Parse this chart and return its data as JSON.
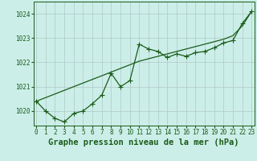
{
  "title": "Graphe pression niveau de la mer (hPa)",
  "background_color": "#cceee8",
  "grid_color": "#b0c8c8",
  "line_color": "#1a5c1a",
  "x_ticks": [
    0,
    1,
    2,
    3,
    4,
    5,
    6,
    7,
    8,
    9,
    10,
    11,
    12,
    13,
    14,
    15,
    16,
    17,
    18,
    19,
    20,
    21,
    22,
    23
  ],
  "ylim": [
    1019.4,
    1024.5
  ],
  "xlim": [
    -0.3,
    23.3
  ],
  "trend_x": [
    0,
    1,
    2,
    3,
    4,
    5,
    6,
    7,
    8,
    9,
    10,
    11,
    12,
    13,
    14,
    15,
    16,
    17,
    18,
    19,
    20,
    21,
    22,
    23
  ],
  "trend_y": [
    1020.4,
    1020.55,
    1020.7,
    1020.85,
    1021.0,
    1021.15,
    1021.3,
    1021.45,
    1021.6,
    1021.75,
    1021.9,
    1022.05,
    1022.15,
    1022.25,
    1022.35,
    1022.45,
    1022.55,
    1022.65,
    1022.75,
    1022.85,
    1022.95,
    1023.1,
    1023.5,
    1024.1
  ],
  "meas_x": [
    0,
    1,
    2,
    3,
    4,
    5,
    6,
    7,
    8,
    9,
    10,
    11,
    12,
    13,
    14,
    15,
    16,
    17,
    18,
    19,
    20,
    21,
    22,
    23
  ],
  "meas_y": [
    1020.4,
    1020.0,
    1019.7,
    1019.55,
    1019.9,
    1020.0,
    1020.3,
    1020.65,
    1021.55,
    1021.0,
    1021.25,
    1022.75,
    1022.55,
    1022.45,
    1022.2,
    1022.35,
    1022.25,
    1022.4,
    1022.45,
    1022.6,
    1022.8,
    1022.9,
    1023.6,
    1024.1
  ],
  "y_ticks": [
    1020,
    1021,
    1022,
    1023,
    1024
  ],
  "marker": "+",
  "marker_size": 4,
  "line_width": 0.9,
  "font_color": "#1a5c1a",
  "title_fontsize": 7.5,
  "tick_fontsize": 5.5
}
